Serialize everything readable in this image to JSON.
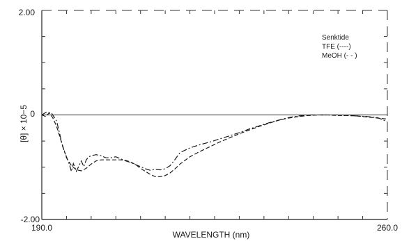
{
  "chart_data": {
    "type": "line",
    "title": "",
    "xlabel": "WAVELENGTH (nm)",
    "ylabel": "[θ] × 10−5",
    "xlim": [
      190.0,
      260.0
    ],
    "ylim": [
      -2.0,
      2.0
    ],
    "x_tick_labels": [
      "190.0",
      "260.0"
    ],
    "y_tick_labels": [
      "2.00",
      "0",
      "-2.00"
    ],
    "zero_line": true,
    "legend": {
      "title": "Senktide",
      "entries": [
        "TFE (----)",
        "MeOH (- - )"
      ],
      "placement": "top-right"
    },
    "series": [
      {
        "name": "TFE",
        "dash": "6,3",
        "x": [
          190.0,
          190.8,
          191.5,
          192.2,
          193.0,
          194.0,
          195.0,
          196.0,
          197.0,
          198.0,
          199.0,
          200.0,
          201.0,
          202.0,
          203.0,
          204.0,
          205.0,
          206.0,
          207.0,
          208.0,
          209.0,
          210.0,
          211.0,
          212.0,
          213.0,
          214.0,
          215.0,
          216.0,
          217.0,
          218.0,
          220.0,
          222.0,
          224.0,
          226.0,
          228.0,
          230.0,
          232.0,
          234.0,
          236.0,
          238.0,
          240.0,
          242.0,
          244.0,
          246.0,
          248.0,
          250.0,
          252.0,
          254.0,
          256.0,
          258.0,
          260.0
        ],
        "y": [
          0.0,
          -0.03,
          0.04,
          -0.05,
          -0.22,
          -0.52,
          -0.82,
          -0.97,
          -1.05,
          -1.07,
          -1.02,
          -0.94,
          -0.88,
          -0.86,
          -0.86,
          -0.86,
          -0.86,
          -0.86,
          -0.87,
          -0.9,
          -0.95,
          -1.02,
          -1.08,
          -1.14,
          -1.18,
          -1.18,
          -1.16,
          -1.11,
          -1.03,
          -0.94,
          -0.8,
          -0.7,
          -0.61,
          -0.52,
          -0.44,
          -0.36,
          -0.29,
          -0.22,
          -0.16,
          -0.1,
          -0.06,
          -0.03,
          -0.01,
          0.0,
          0.0,
          -0.01,
          -0.01,
          -0.02,
          -0.04,
          -0.06,
          -0.08
        ]
      },
      {
        "name": "MeOH",
        "dash": "8,3,2,3",
        "x": [
          190.0,
          191.0,
          192.0,
          193.0,
          193.6,
          194.2,
          195.0,
          195.6,
          196.0,
          196.4,
          197.0,
          197.5,
          198.0,
          198.5,
          199.0,
          199.5,
          200.0,
          201.0,
          202.0,
          203.0,
          204.0,
          205.0,
          206.0,
          207.0,
          208.0,
          209.0,
          210.0,
          211.0,
          212.0,
          213.0,
          214.0,
          215.0,
          216.0,
          217.0,
          218.0,
          220.0,
          222.0,
          224.0,
          226.0,
          228.0,
          230.0,
          232.0,
          234.0,
          236.0,
          238.0,
          240.0,
          242.0,
          244.0,
          246.0,
          248.0,
          250.0,
          252.0,
          254.0,
          256.0,
          258.0,
          260.0
        ],
        "y": [
          0.0,
          0.06,
          0.03,
          -0.12,
          -0.35,
          -0.6,
          -0.8,
          -0.95,
          -1.08,
          -0.93,
          -1.08,
          -0.98,
          -0.88,
          -0.99,
          -0.86,
          -0.8,
          -0.78,
          -0.76,
          -0.78,
          -0.82,
          -0.82,
          -0.8,
          -0.84,
          -0.88,
          -0.91,
          -0.95,
          -0.99,
          -1.03,
          -1.06,
          -1.04,
          -1.05,
          -1.03,
          -0.97,
          -0.85,
          -0.72,
          -0.63,
          -0.57,
          -0.52,
          -0.46,
          -0.4,
          -0.34,
          -0.27,
          -0.21,
          -0.15,
          -0.1,
          -0.05,
          -0.02,
          0.0,
          0.0,
          0.0,
          0.0,
          -0.01,
          -0.02,
          -0.03,
          -0.05,
          -0.13
        ]
      }
    ]
  }
}
